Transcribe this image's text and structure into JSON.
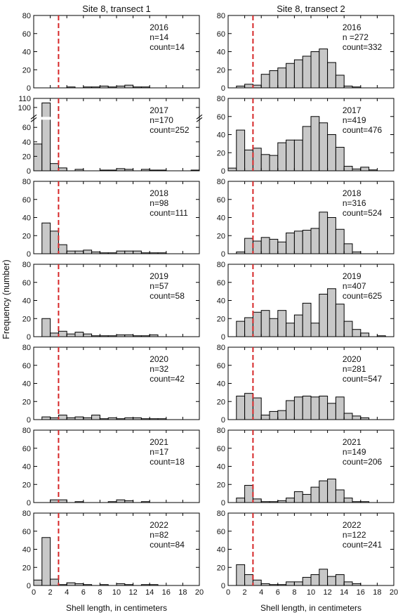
{
  "figure": {
    "ylabel": "Frequency (number)",
    "xlabel": "Shell length, in centimeters",
    "columns": [
      "Site 8, transect 1",
      "Site 8, transect 2"
    ],
    "bar_fill": "#c8c8c8",
    "bar_stroke": "#000000",
    "threshold_color": "#d62728"
  },
  "chart_data": {
    "type": "bar",
    "subtype": "histogram-grid",
    "bin_width_cm": 1,
    "x_range": [
      0,
      20
    ],
    "x_ticks": [
      0,
      2,
      4,
      6,
      8,
      10,
      12,
      14,
      16,
      18,
      20
    ],
    "threshold_cm": 3,
    "panels": [
      {
        "column": 0,
        "row": 0,
        "year": "2016",
        "n": "n=14",
        "count": "count=14",
        "ylim": [
          0,
          80
        ],
        "yticks": [
          0,
          20,
          40,
          60,
          80
        ],
        "values": [
          0,
          0,
          0,
          0,
          1,
          0,
          1,
          1,
          2,
          1,
          2,
          3,
          1,
          1,
          0,
          0,
          0,
          0,
          0,
          0
        ]
      },
      {
        "column": 1,
        "row": 0,
        "year": "2016",
        "n": "n =272",
        "count": "count=332",
        "ylim": [
          0,
          80
        ],
        "yticks": [
          0,
          20,
          40,
          60,
          80
        ],
        "values": [
          0,
          2,
          4,
          3,
          15,
          19,
          22,
          27,
          31,
          35,
          40,
          43,
          28,
          14,
          2,
          1,
          0,
          0,
          0,
          0
        ]
      },
      {
        "column": 0,
        "row": 1,
        "year": "2017",
        "n": "n=170",
        "count": "count=252",
        "ylim": [
          0,
          110
        ],
        "yticks": [
          0,
          20,
          40,
          60,
          100,
          110
        ],
        "axis_break": [
          70,
          90
        ],
        "values": [
          37,
          105,
          10,
          4,
          0,
          2,
          0,
          0,
          1,
          1,
          3,
          2,
          0,
          2,
          1,
          1,
          0,
          0,
          0,
          1
        ]
      },
      {
        "column": 1,
        "row": 1,
        "year": "2017",
        "n": "n=419",
        "count": "count=476",
        "ylim": [
          0,
          80
        ],
        "yticks": [
          0,
          20,
          40,
          60,
          80
        ],
        "values": [
          3,
          45,
          23,
          25,
          18,
          17,
          31,
          34,
          34,
          49,
          60,
          53,
          40,
          26,
          5,
          2,
          4,
          1,
          0,
          0
        ]
      },
      {
        "column": 0,
        "row": 2,
        "year": "2018",
        "n": "n=98",
        "count": "count=111",
        "ylim": [
          0,
          80
        ],
        "yticks": [
          0,
          20,
          40,
          60,
          80
        ],
        "values": [
          0,
          34,
          25,
          10,
          3,
          3,
          4,
          2,
          1,
          1,
          3,
          3,
          3,
          1,
          1,
          1,
          0,
          0,
          0,
          0
        ]
      },
      {
        "column": 1,
        "row": 2,
        "year": "2018",
        "n": "n=316",
        "count": "count=524",
        "ylim": [
          0,
          80
        ],
        "yticks": [
          0,
          20,
          40,
          60,
          80
        ],
        "values": [
          0,
          2,
          17,
          14,
          18,
          16,
          13,
          23,
          25,
          26,
          28,
          46,
          40,
          27,
          11,
          2,
          0,
          0,
          0,
          0
        ]
      },
      {
        "column": 0,
        "row": 3,
        "year": "2019",
        "n": "n=57",
        "count": "count=58",
        "ylim": [
          0,
          80
        ],
        "yticks": [
          0,
          20,
          40,
          60,
          80
        ],
        "values": [
          0,
          20,
          4,
          6,
          3,
          5,
          3,
          1,
          1,
          1,
          2,
          2,
          1,
          1,
          2,
          0,
          0,
          0,
          0,
          0
        ]
      },
      {
        "column": 1,
        "row": 3,
        "year": "2019",
        "n": "n=407",
        "count": "count=625",
        "ylim": [
          0,
          80
        ],
        "yticks": [
          0,
          20,
          40,
          60,
          80
        ],
        "values": [
          0,
          17,
          21,
          27,
          29,
          20,
          29,
          15,
          24,
          37,
          15,
          47,
          53,
          36,
          17,
          8,
          4,
          0,
          1,
          0
        ]
      },
      {
        "column": 0,
        "row": 4,
        "year": "2020",
        "n": "n=32",
        "count": "count=42",
        "ylim": [
          0,
          80
        ],
        "yticks": [
          0,
          20,
          40,
          60,
          80
        ],
        "values": [
          0,
          3,
          2,
          5,
          2,
          3,
          2,
          5,
          1,
          2,
          1,
          2,
          2,
          1,
          1,
          1,
          0,
          0,
          0,
          0
        ]
      },
      {
        "column": 1,
        "row": 4,
        "year": "2020",
        "n": "n=281",
        "count": "count=547",
        "ylim": [
          0,
          80
        ],
        "yticks": [
          0,
          20,
          40,
          60,
          80
        ],
        "values": [
          0,
          26,
          29,
          24,
          5,
          9,
          10,
          21,
          25,
          26,
          25,
          26,
          18,
          25,
          7,
          4,
          2,
          0,
          0,
          0
        ]
      },
      {
        "column": 0,
        "row": 5,
        "year": "2021",
        "n": "n=17",
        "count": "count=18",
        "ylim": [
          0,
          80
        ],
        "yticks": [
          0,
          20,
          40,
          60,
          80
        ],
        "values": [
          0,
          0,
          3,
          3,
          0,
          1,
          0,
          0,
          0,
          1,
          3,
          2,
          0,
          1,
          0,
          0,
          0,
          0,
          0,
          0
        ]
      },
      {
        "column": 1,
        "row": 5,
        "year": "2021",
        "n": "n=149",
        "count": "count=206",
        "ylim": [
          0,
          80
        ],
        "yticks": [
          0,
          20,
          40,
          60,
          80
        ],
        "values": [
          0,
          5,
          19,
          4,
          1,
          1,
          2,
          5,
          12,
          9,
          17,
          24,
          26,
          14,
          5,
          1,
          1,
          0,
          0,
          0
        ]
      },
      {
        "column": 0,
        "row": 6,
        "year": "2022",
        "n": "n=82",
        "count": "count=84",
        "ylim": [
          0,
          80
        ],
        "yticks": [
          0,
          20,
          40,
          60,
          80
        ],
        "values": [
          6,
          53,
          7,
          1,
          3,
          2,
          1,
          0,
          1,
          0,
          2,
          1,
          0,
          1,
          1,
          0,
          0,
          0,
          0,
          0
        ]
      },
      {
        "column": 1,
        "row": 6,
        "year": "2022",
        "n": "n=122",
        "count": "count=241",
        "ylim": [
          0,
          80
        ],
        "yticks": [
          0,
          20,
          40,
          60,
          80
        ],
        "values": [
          0,
          23,
          12,
          6,
          2,
          1,
          1,
          4,
          4,
          9,
          12,
          18,
          10,
          12,
          4,
          2,
          0,
          0,
          0,
          0
        ]
      }
    ]
  }
}
